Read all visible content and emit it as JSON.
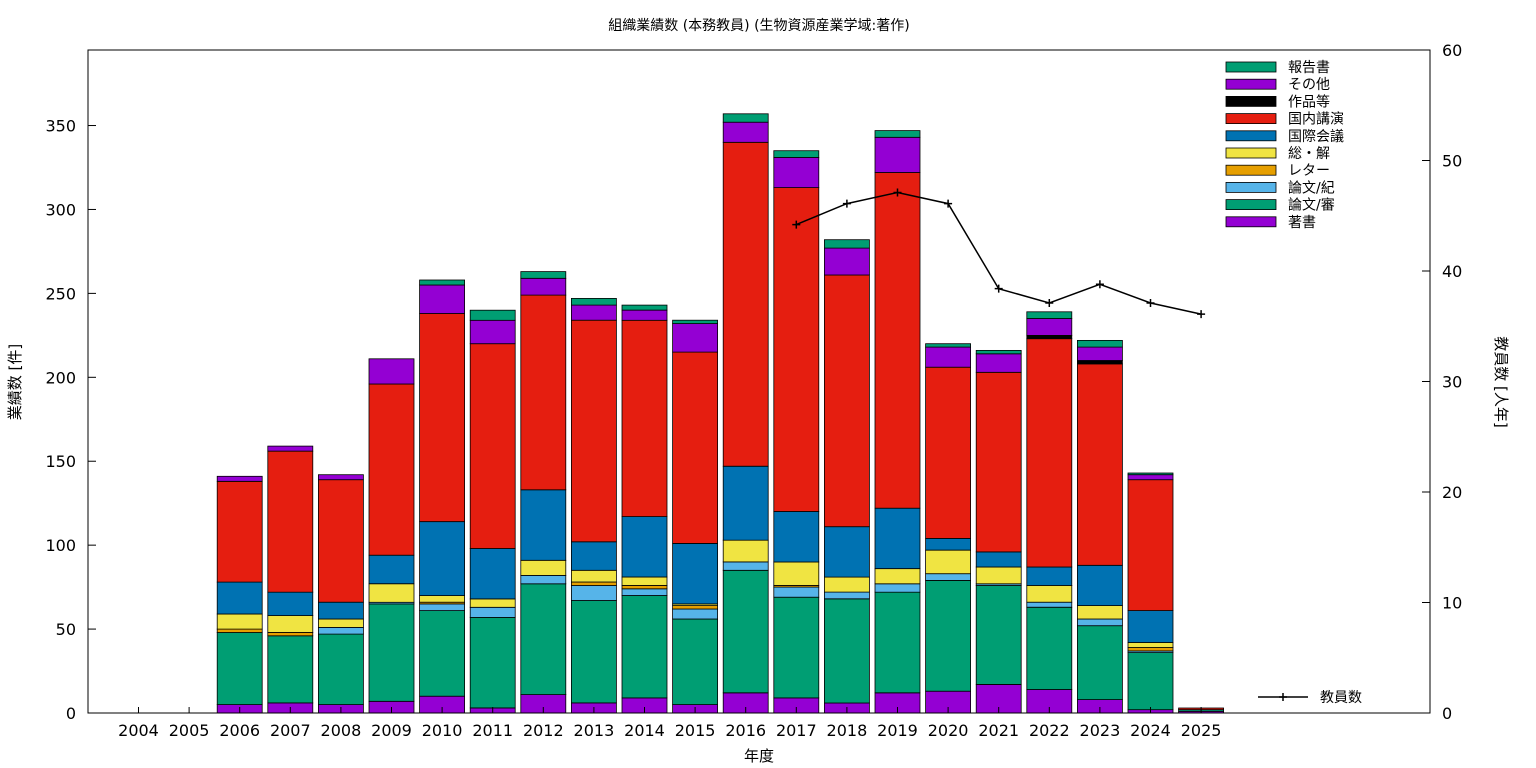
{
  "chart_data": {
    "type": "bar",
    "title": "組織業績数 (本務教員) (生物資源産業学域:著作)",
    "xlabel": "年度",
    "ylabel": "業績数 [件]",
    "y2label": "教員数 [人年]",
    "ylim": [
      0,
      395
    ],
    "y2lim": [
      0,
      60
    ],
    "yticks": [
      0,
      50,
      100,
      150,
      200,
      250,
      300,
      350
    ],
    "y2ticks": [
      0,
      10,
      20,
      30,
      40,
      50,
      60
    ],
    "legend_position": "top-right",
    "categories": [
      "2004",
      "2005",
      "2006",
      "2007",
      "2008",
      "2009",
      "2010",
      "2011",
      "2012",
      "2013",
      "2014",
      "2015",
      "2016",
      "2017",
      "2018",
      "2019",
      "2020",
      "2021",
      "2022",
      "2023",
      "2024",
      "2025"
    ],
    "series": [
      {
        "name": "著書",
        "color": "#9400d3",
        "values": [
          0,
          0,
          5,
          6,
          5,
          7,
          10,
          3,
          11,
          6,
          9,
          5,
          12,
          9,
          6,
          12,
          13,
          17,
          14,
          8,
          2,
          1
        ]
      },
      {
        "name": "論文/審",
        "color": "#009e73",
        "values": [
          0,
          0,
          43,
          40,
          42,
          58,
          51,
          54,
          66,
          61,
          61,
          51,
          73,
          60,
          62,
          60,
          66,
          59,
          49,
          44,
          34,
          1
        ]
      },
      {
        "name": "論文/紀",
        "color": "#56b4e9",
        "values": [
          0,
          0,
          0,
          0,
          4,
          1,
          4,
          6,
          5,
          9,
          4,
          6,
          5,
          6,
          4,
          5,
          4,
          1,
          3,
          4,
          1,
          0
        ]
      },
      {
        "name": "レター",
        "color": "#e69f00",
        "values": [
          0,
          0,
          2,
          2,
          0,
          0,
          1,
          0,
          0,
          2,
          2,
          2,
          0,
          1,
          0,
          0,
          0,
          0,
          0,
          0,
          2,
          0
        ]
      },
      {
        "name": "総・解",
        "color": "#f0e442",
        "values": [
          0,
          0,
          9,
          10,
          5,
          11,
          4,
          5,
          9,
          7,
          5,
          1,
          13,
          14,
          9,
          9,
          14,
          10,
          10,
          8,
          3,
          0
        ]
      },
      {
        "name": "国際会議",
        "color": "#0072b2",
        "values": [
          0,
          0,
          19,
          14,
          10,
          17,
          44,
          30,
          42,
          17,
          36,
          36,
          44,
          30,
          30,
          36,
          7,
          9,
          11,
          24,
          19,
          0
        ]
      },
      {
        "name": "国内講演",
        "color": "#e51e10",
        "values": [
          0,
          0,
          60,
          84,
          73,
          102,
          124,
          122,
          116,
          132,
          117,
          114,
          193,
          193,
          150,
          200,
          102,
          107,
          136,
          120,
          78,
          1
        ]
      },
      {
        "name": "作品等",
        "color": "#000000",
        "values": [
          0,
          0,
          0,
          0,
          0,
          0,
          0,
          0,
          0,
          0,
          0,
          0,
          0,
          0,
          0,
          0,
          0,
          0,
          2,
          2,
          0,
          0
        ]
      },
      {
        "name": "その他",
        "color": "#9400d3",
        "values": [
          0,
          0,
          3,
          3,
          3,
          15,
          17,
          14,
          10,
          9,
          6,
          17,
          12,
          18,
          16,
          21,
          12,
          11,
          10,
          8,
          3,
          0
        ]
      },
      {
        "name": "報告書",
        "color": "#009e73",
        "values": [
          0,
          0,
          0,
          0,
          0,
          0,
          3,
          6,
          4,
          4,
          3,
          2,
          5,
          4,
          5,
          4,
          2,
          2,
          4,
          4,
          1,
          0
        ]
      }
    ],
    "line_series": {
      "name": "教員数",
      "color": "#000000",
      "x": [
        "2017",
        "2018",
        "2019",
        "2020",
        "2021",
        "2022",
        "2023",
        "2024",
        "2025"
      ],
      "values": [
        44.2,
        46.1,
        47.1,
        46.1,
        38.4,
        37.1,
        38.8,
        37.1,
        36.1
      ]
    }
  }
}
